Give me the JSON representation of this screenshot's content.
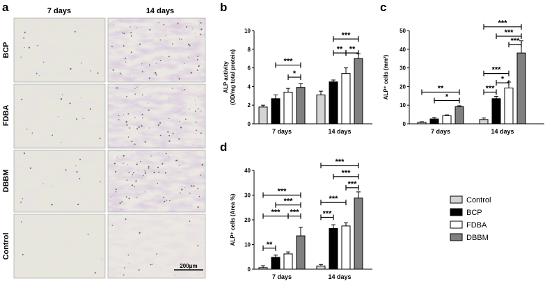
{
  "figure": {
    "panel_a": {
      "letter": "a",
      "columns": [
        "7 days",
        "14 days"
      ],
      "rows": [
        "BCP",
        "FDBA",
        "DBBM",
        "Control"
      ],
      "scale_bar": "200μm"
    },
    "legend": [
      {
        "name": "Control",
        "color": "#d4d4d4"
      },
      {
        "name": "BCP",
        "color": "#000000"
      },
      {
        "name": "FDBA",
        "color": "#ffffff"
      },
      {
        "name": "DBBM",
        "color": "#808080"
      }
    ]
  },
  "chart_data": [
    {
      "id": "b",
      "letter": "b",
      "type": "bar",
      "ylabel": [
        "ALP activity",
        "(OD/mg total protein)"
      ],
      "ylim": [
        0,
        10
      ],
      "yticks": [
        0,
        2,
        4,
        6,
        8,
        10
      ],
      "categories": [
        "7 days",
        "14 days"
      ],
      "series": [
        {
          "name": "Control",
          "values": [
            1.8,
            3.1
          ],
          "errors": [
            0.2,
            0.4
          ]
        },
        {
          "name": "BCP",
          "values": [
            2.7,
            4.5
          ],
          "errors": [
            0.4,
            0.2
          ]
        },
        {
          "name": "FDBA",
          "values": [
            3.4,
            5.4
          ],
          "errors": [
            0.4,
            0.6
          ]
        },
        {
          "name": "DBBM",
          "values": [
            3.9,
            7.0
          ],
          "errors": [
            0.4,
            0.5
          ]
        }
      ],
      "significance": [
        {
          "group": 0,
          "from": 1,
          "to": 3,
          "y": 6.3,
          "label": "***"
        },
        {
          "group": 0,
          "from": 2,
          "to": 3,
          "y": 5.0,
          "label": "*"
        },
        {
          "group": 1,
          "from": 1,
          "to": 3,
          "y": 9.1,
          "label": "***"
        },
        {
          "group": 1,
          "from": 1,
          "to": 2,
          "y": 7.6,
          "label": "**"
        },
        {
          "group": 1,
          "from": 2,
          "to": 3,
          "y": 7.6,
          "label": "**"
        }
      ]
    },
    {
      "id": "c",
      "letter": "c",
      "type": "bar",
      "ylabel": [
        "ALP⁺ cells (mm²)"
      ],
      "ylim": [
        0,
        50
      ],
      "yticks": [
        0,
        10,
        20,
        30,
        40,
        50
      ],
      "categories": [
        "7 days",
        "14 days"
      ],
      "series": [
        {
          "name": "Control",
          "values": [
            0.8,
            2.3
          ],
          "errors": [
            0.3,
            0.8
          ]
        },
        {
          "name": "BCP",
          "values": [
            2.6,
            13.5
          ],
          "errors": [
            0.8,
            1.2
          ]
        },
        {
          "name": "FDBA",
          "values": [
            4.4,
            19.2
          ],
          "errors": [
            0.4,
            3.2
          ]
        },
        {
          "name": "DBBM",
          "values": [
            9.2,
            38.0
          ],
          "errors": [
            0.5,
            6.5
          ]
        }
      ],
      "significance": [
        {
          "group": 0,
          "from": 0,
          "to": 3,
          "y": 17,
          "label": "**"
        },
        {
          "group": 0,
          "from": 1,
          "to": 3,
          "y": 12.5,
          "label": "*"
        },
        {
          "group": 1,
          "from": 0,
          "to": 3,
          "y": 52,
          "label": "***"
        },
        {
          "group": 1,
          "from": 1,
          "to": 3,
          "y": 47,
          "label": "***"
        },
        {
          "group": 1,
          "from": 2,
          "to": 3,
          "y": 42.5,
          "label": "***"
        },
        {
          "group": 1,
          "from": 0,
          "to": 2,
          "y": 27,
          "label": "***"
        },
        {
          "group": 1,
          "from": 1,
          "to": 2,
          "y": 22,
          "label": "*"
        },
        {
          "group": 1,
          "from": 0,
          "to": 1,
          "y": 17,
          "label": "***"
        }
      ]
    },
    {
      "id": "d",
      "letter": "d",
      "type": "bar",
      "ylabel": [
        "ALP⁺ cells (Area %)"
      ],
      "ylim": [
        0,
        40
      ],
      "yticks": [
        0,
        10,
        20,
        30,
        40
      ],
      "categories": [
        "7 days",
        "14 days"
      ],
      "series": [
        {
          "name": "Control",
          "values": [
            0.6,
            1.3
          ],
          "errors": [
            0.8,
            0.6
          ]
        },
        {
          "name": "BCP",
          "values": [
            4.8,
            16.5
          ],
          "errors": [
            0.9,
            1.5
          ]
        },
        {
          "name": "FDBA",
          "values": [
            6.2,
            17.5
          ],
          "errors": [
            0.8,
            1.3
          ]
        },
        {
          "name": "DBBM",
          "values": [
            13.5,
            28.8
          ],
          "errors": [
            3.5,
            2.5
          ]
        }
      ],
      "significance": [
        {
          "group": 0,
          "from": 0,
          "to": 3,
          "y": 30,
          "label": "***"
        },
        {
          "group": 0,
          "from": 1,
          "to": 3,
          "y": 26,
          "label": "***"
        },
        {
          "group": 0,
          "from": 0,
          "to": 2,
          "y": 21.5,
          "label": "***"
        },
        {
          "group": 0,
          "from": 2,
          "to": 3,
          "y": 21.5,
          "label": "***"
        },
        {
          "group": 0,
          "from": 0,
          "to": 1,
          "y": 8.5,
          "label": "**"
        },
        {
          "group": 1,
          "from": 0,
          "to": 3,
          "y": 42,
          "label": "***"
        },
        {
          "group": 1,
          "from": 1,
          "to": 3,
          "y": 37.5,
          "label": "***"
        },
        {
          "group": 1,
          "from": 2,
          "to": 3,
          "y": 33,
          "label": "***"
        },
        {
          "group": 1,
          "from": 0,
          "to": 2,
          "y": 27,
          "label": "***"
        },
        {
          "group": 1,
          "from": 0,
          "to": 1,
          "y": 21,
          "label": "***"
        }
      ]
    }
  ]
}
